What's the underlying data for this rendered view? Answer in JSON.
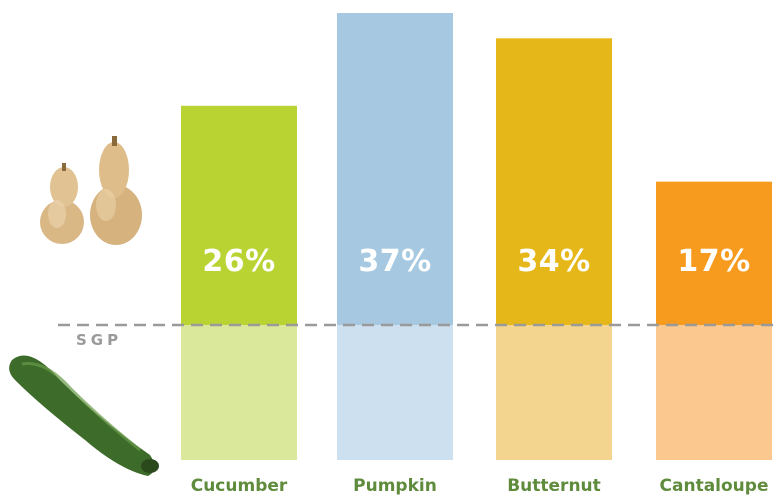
{
  "chart_data": {
    "type": "bar",
    "categories": [
      "Cucumber",
      "Pumpkin",
      "Butternut",
      "Cantaloupe"
    ],
    "values": [
      26,
      37,
      34,
      17
    ],
    "value_labels": [
      "26%",
      "37%",
      "34%",
      "17%"
    ],
    "colors": {
      "upper": [
        "#b9d432",
        "#a6c9e1",
        "#e6b718",
        "#f79b1f"
      ],
      "lower": [
        "#d9e89b",
        "#cde0ef",
        "#f3d590",
        "#fbc98f"
      ]
    },
    "ylim": [
      0,
      40
    ],
    "grid": false,
    "legend": "none",
    "reference_line": {
      "label": "SGP",
      "style": "dashed",
      "color": "#9a9a9a"
    }
  },
  "illustrations": {
    "top": "butternut-squash-image",
    "bottom": "cucumber-image"
  },
  "colors": {
    "category_label": "#5f8b3c"
  }
}
